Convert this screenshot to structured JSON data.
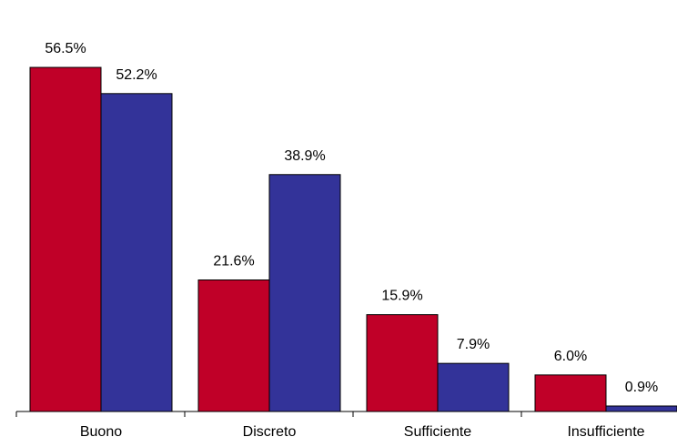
{
  "chart_data": {
    "type": "bar",
    "categories": [
      "Buono",
      "Discreto",
      "Sufficiente",
      "Insufficiente"
    ],
    "series": [
      {
        "values": [
          56.5,
          21.6,
          15.9,
          6.0
        ],
        "labels": [
          "56.5%",
          "21.6%",
          "15.9%",
          "6.0%"
        ],
        "color": "#C00028"
      },
      {
        "values": [
          52.2,
          38.9,
          7.9,
          0.9
        ],
        "labels": [
          "52.2%",
          "38.9%",
          "7.9%",
          "0.9%"
        ],
        "color": "#333399"
      }
    ],
    "title": "",
    "xlabel": "",
    "ylabel": "",
    "ylim": [
      0,
      60
    ],
    "grid": false,
    "legend": "none"
  }
}
